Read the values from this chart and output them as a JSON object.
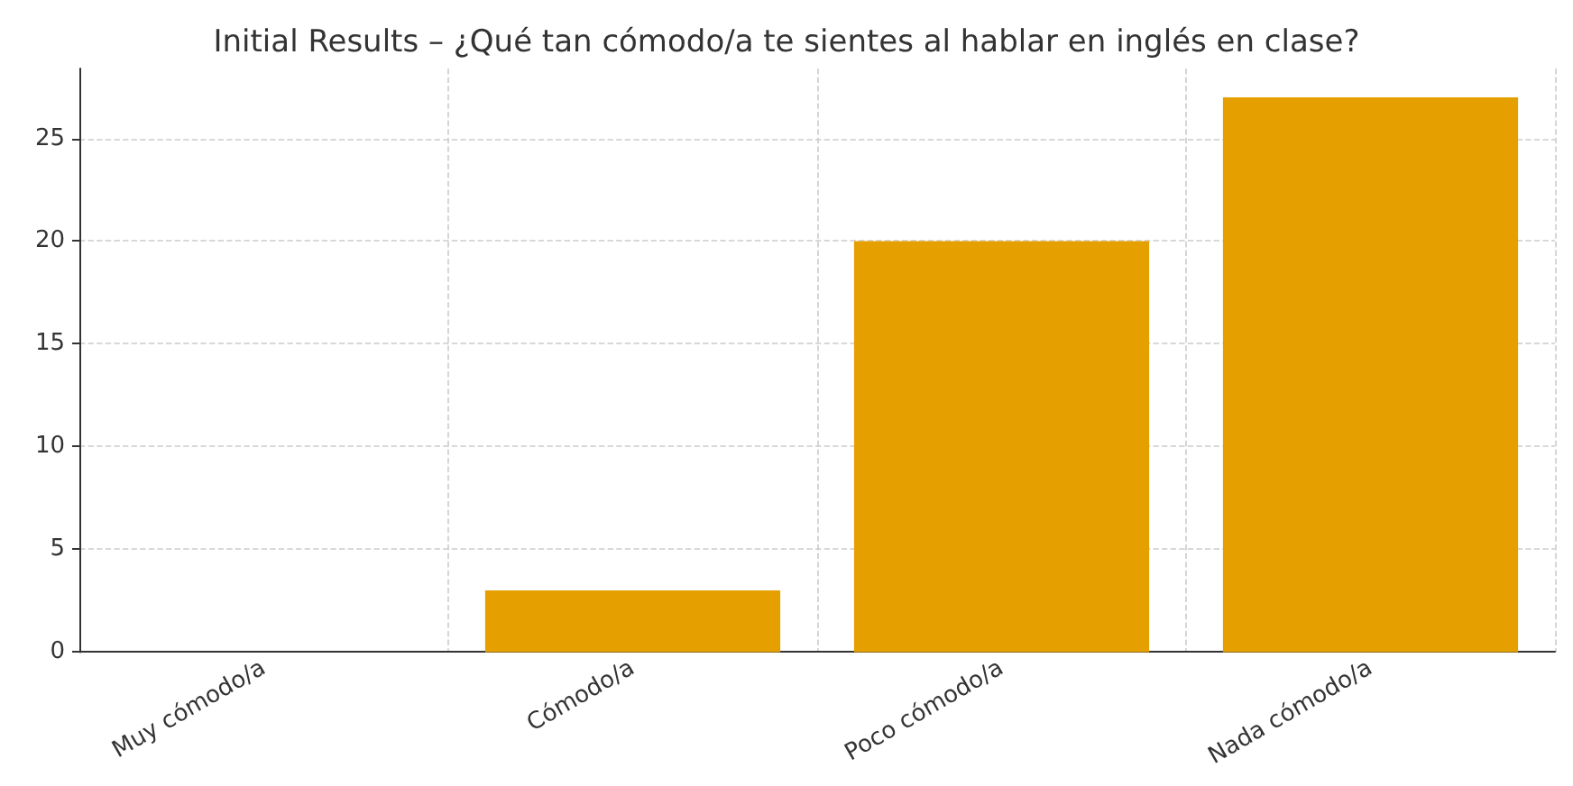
{
  "chart_data": {
    "type": "bar",
    "title": "Initial Results – ¿Qué tan cómodo/a te sientes al hablar en inglés en clase?",
    "categories": [
      "Muy cómodo/a",
      "Cómodo/a",
      "Poco cómodo/a",
      "Nada cómodo/a"
    ],
    "values": [
      0,
      3,
      20,
      27
    ],
    "color": "#e5a000",
    "ylim": [
      0,
      28.4
    ],
    "yticks": [
      0,
      5,
      10,
      15,
      20,
      25
    ],
    "grid": true
  }
}
